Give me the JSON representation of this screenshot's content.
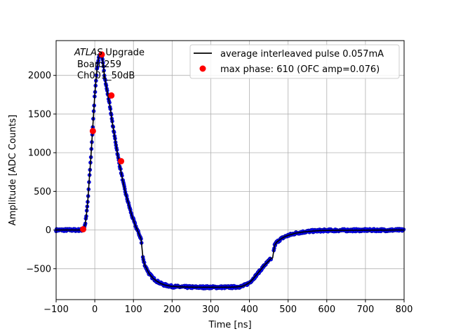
{
  "chart_data": {
    "type": "line",
    "xlabel": "Time [ns]",
    "ylabel": "Amplitude [ADC Counts]",
    "xlim": [
      -100,
      800
    ],
    "ylim": [
      -900,
      2450
    ],
    "x_ticks": [
      -100,
      0,
      100,
      200,
      300,
      400,
      500,
      600,
      700,
      800
    ],
    "x_tick_labels": [
      "−100",
      "0",
      "100",
      "200",
      "300",
      "400",
      "500",
      "600",
      "700",
      "800"
    ],
    "y_ticks": [
      -500,
      0,
      500,
      1000,
      1500,
      2000
    ],
    "y_tick_labels": [
      "−500",
      "0",
      "500",
      "1000",
      "1500",
      "2000"
    ],
    "grid": true,
    "legend_position": "top-right",
    "annotation": {
      "italic": "ATLAS",
      "rest": " Upgrade",
      "line2": "Board259",
      "line3": "Ch001_50dB"
    },
    "series": [
      {
        "name": "average interleaved pulse 0.057mA",
        "color": "#000000",
        "style": "line",
        "x": [
          -100,
          -60,
          -40,
          -35,
          -32,
          -28,
          -25,
          -22,
          -18,
          -15,
          -10,
          -5,
          0,
          5,
          10,
          15,
          18,
          22,
          25,
          30,
          35,
          40,
          45,
          50,
          55,
          60,
          65,
          70,
          75,
          80,
          85,
          90,
          95,
          100,
          105,
          110,
          115,
          120,
          121,
          123,
          125,
          130,
          140,
          150,
          160,
          170,
          180,
          190,
          200,
          220,
          240,
          260,
          280,
          300,
          320,
          340,
          360,
          380,
          390,
          400,
          410,
          420,
          430,
          440,
          450,
          455,
          460,
          465,
          470,
          480,
          490,
          500,
          520,
          540,
          560,
          580,
          600,
          650,
          700,
          750,
          800
        ],
        "y": [
          0,
          0,
          0,
          0,
          0,
          20,
          70,
          180,
          380,
          600,
          950,
          1350,
          1750,
          2050,
          2230,
          2270,
          2250,
          2150,
          2000,
          1850,
          1720,
          1580,
          1400,
          1250,
          1100,
          950,
          820,
          700,
          580,
          470,
          380,
          290,
          200,
          130,
          60,
          0,
          -60,
          -120,
          -180,
          -280,
          -380,
          -460,
          -560,
          -620,
          -660,
          -690,
          -710,
          -720,
          -730,
          -735,
          -738,
          -740,
          -740,
          -740,
          -740,
          -740,
          -738,
          -730,
          -710,
          -680,
          -630,
          -570,
          -510,
          -450,
          -400,
          -375,
          -360,
          -200,
          -160,
          -120,
          -90,
          -70,
          -40,
          -25,
          -15,
          -8,
          -5,
          -3,
          -2,
          -1,
          0
        ]
      },
      {
        "name": "max phase: 610 (OFC amp=0.076)",
        "color": "#ff0000",
        "style": "markers",
        "x": [
          -30,
          -5,
          18,
          43,
          68
        ],
        "y": [
          10,
          1280,
          2270,
          1740,
          890
        ]
      }
    ]
  }
}
